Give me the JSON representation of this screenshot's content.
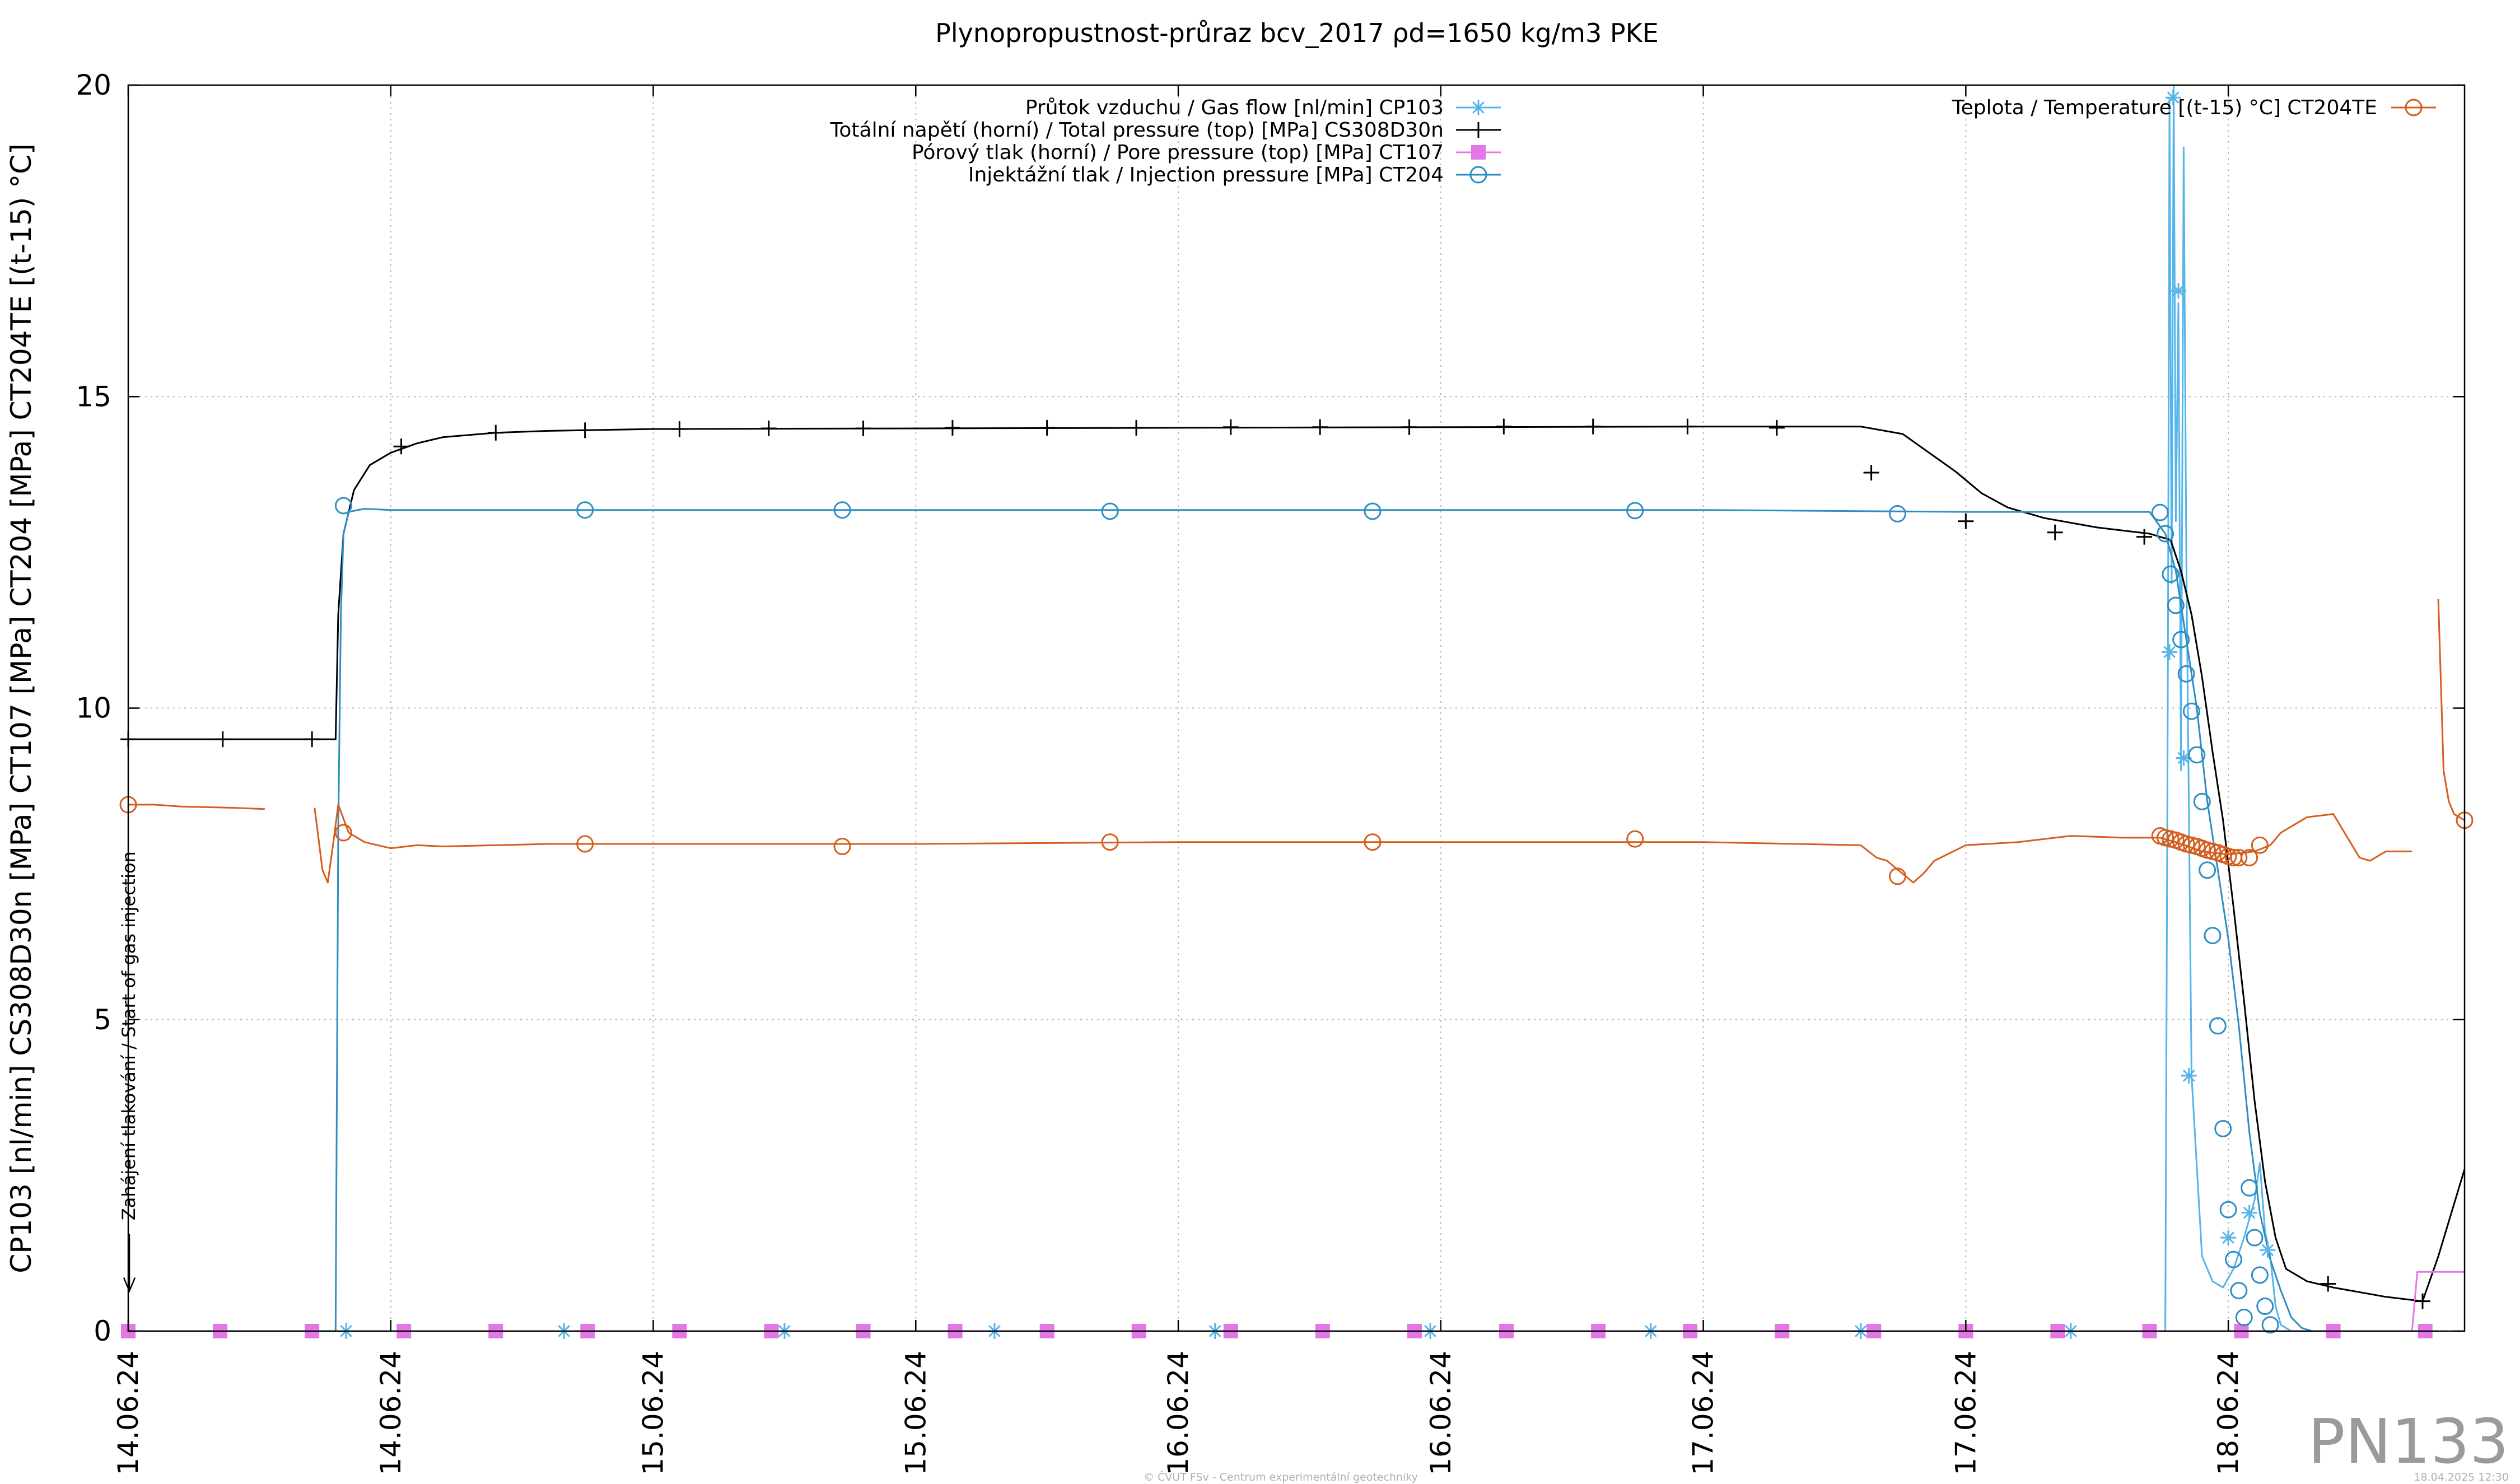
{
  "chart_data": {
    "type": "line",
    "title": "Plynopropustnost-průraz bcv_2017 ρd=1650 kg/m3 PKE",
    "ylabel": "CP103 [nl/min] CS308D30n [MPa] CT107 [MPa] CT204 [MPa] CT204TE [(t-15) °C]",
    "xlabel": "",
    "ylim": [
      0,
      20
    ],
    "xlim": [
      0,
      4.45
    ],
    "yticks": [
      "0",
      "5",
      "10",
      "15",
      "20"
    ],
    "xticks": [
      {
        "x": 0,
        "label": "14.06.24"
      },
      {
        "x": 0.5,
        "label": "14.06.24"
      },
      {
        "x": 1.0,
        "label": "15.06.24"
      },
      {
        "x": 1.5,
        "label": "15.06.24"
      },
      {
        "x": 2.0,
        "label": "16.06.24"
      },
      {
        "x": 2.5,
        "label": "16.06.24"
      },
      {
        "x": 3.0,
        "label": "17.06.24"
      },
      {
        "x": 3.5,
        "label": "17.06.24"
      },
      {
        "x": 4.0,
        "label": "18.06.24"
      }
    ],
    "grid": true,
    "grid_style": "dotted",
    "series": [
      {
        "name": "Průtok vzduchu / Gas flow [nl/min] CP103",
        "color": "#56b4e9",
        "marker": "asterisk",
        "x": [
          0,
          0.39,
          0.398,
          0.4,
          0.42,
          0.6,
          1.0,
          2.0,
          2.8,
          3.5,
          3.75,
          3.88,
          3.885,
          3.888,
          3.892,
          3.896,
          3.9,
          3.905,
          3.91,
          3.915,
          3.92,
          3.93,
          3.95,
          3.97,
          3.99,
          4.01,
          4.03,
          4.05,
          4.06,
          4.07,
          4.08,
          4.09,
          4.1,
          4.12,
          4.15,
          4.2,
          4.3,
          4.4
        ],
        "y": [
          0,
          0,
          0,
          0,
          0,
          0,
          0,
          0,
          0,
          0,
          0,
          0,
          10.8,
          19.8,
          12.0,
          20.0,
          13.0,
          16.5,
          9.0,
          19.0,
          12.5,
          4.1,
          1.2,
          0.8,
          0.7,
          1.0,
          1.5,
          2.1,
          2.7,
          1.6,
          1.2,
          0.4,
          0.1,
          0,
          0,
          0,
          0,
          0
        ],
        "marker_x": [
          0.415,
          0.83,
          1.25,
          1.65,
          2.07,
          2.48,
          2.9,
          3.3,
          3.7,
          3.888,
          3.895,
          3.905,
          3.915,
          3.925,
          4.0,
          4.04,
          4.075
        ],
        "marker_y": [
          0,
          0,
          0,
          0,
          0,
          0,
          0,
          0,
          0,
          10.9,
          19.8,
          16.7,
          9.2,
          4.1,
          1.5,
          1.9,
          1.3
        ]
      },
      {
        "name": "Totální napětí (horní) / Total pressure (top) [MPa] CS308D30n",
        "color": "#000000",
        "marker": "plus",
        "x": [
          0,
          0.39,
          0.395,
          0.4,
          0.41,
          0.43,
          0.46,
          0.5,
          0.55,
          0.6,
          0.7,
          0.8,
          1.0,
          2.0,
          3.0,
          3.3,
          3.38,
          3.43,
          3.48,
          3.53,
          3.58,
          3.65,
          3.75,
          3.85,
          3.87,
          3.89,
          3.91,
          3.93,
          3.95,
          3.97,
          3.99,
          4.01,
          4.03,
          4.05,
          4.07,
          4.09,
          4.11,
          4.15,
          4.2,
          4.3,
          4.35,
          4.37,
          4.4,
          4.45
        ],
        "y": [
          9.5,
          9.5,
          9.5,
          11.5,
          12.8,
          13.5,
          13.9,
          14.1,
          14.25,
          14.35,
          14.42,
          14.45,
          14.48,
          14.5,
          14.52,
          14.52,
          14.4,
          14.1,
          13.8,
          13.45,
          13.22,
          13.05,
          12.9,
          12.8,
          12.75,
          12.7,
          12.2,
          11.5,
          10.5,
          9.3,
          8.2,
          6.8,
          5.3,
          3.7,
          2.4,
          1.5,
          1.0,
          0.8,
          0.7,
          0.55,
          0.5,
          0.48,
          1.2,
          2.6
        ],
        "marker_x": [
          0,
          0.18,
          0.35,
          0.52,
          0.7,
          0.87,
          1.05,
          1.22,
          1.4,
          1.57,
          1.75,
          1.92,
          2.1,
          2.27,
          2.44,
          2.62,
          2.79,
          2.97,
          3.14,
          3.32,
          3.5,
          3.67,
          3.84,
          4.19,
          4.37
        ],
        "marker_y": [
          9.5,
          9.5,
          9.5,
          14.2,
          14.42,
          14.46,
          14.48,
          14.49,
          14.49,
          14.5,
          14.5,
          14.5,
          14.51,
          14.51,
          14.51,
          14.52,
          14.52,
          14.52,
          14.5,
          13.78,
          13.0,
          12.82,
          12.75,
          0.76,
          0.48
        ]
      },
      {
        "name": "Pórový tlak (horní) / Pore pressure (top) [MPa] CT107",
        "color": "#e377e6",
        "marker": "square",
        "x": [
          0,
          4.35,
          4.36,
          4.45
        ],
        "y": [
          0,
          0,
          0.95,
          0.95
        ],
        "marker_x": [
          0,
          0.175,
          0.35,
          0.525,
          0.7,
          0.875,
          1.05,
          1.225,
          1.4,
          1.575,
          1.75,
          1.925,
          2.1,
          2.275,
          2.45,
          2.625,
          2.8,
          2.975,
          3.15,
          3.325,
          3.5,
          3.675,
          3.85,
          4.025,
          4.2,
          4.375
        ],
        "marker_y": [
          0,
          0,
          0,
          0,
          0,
          0,
          0,
          0,
          0,
          0,
          0,
          0,
          0,
          0,
          0,
          0,
          0,
          0,
          0,
          0,
          0,
          0,
          0,
          0,
          0,
          0
        ]
      },
      {
        "name": "Injektážní tlak / Injection pressure [MPa] CT204",
        "color": "#2e8ec2",
        "marker": "circle",
        "x": [
          0,
          0.39,
          0.395,
          0.4,
          0.405,
          0.41,
          0.42,
          0.45,
          0.5,
          1.0,
          2.0,
          3.0,
          3.5,
          3.85,
          3.88,
          3.9,
          3.92,
          3.94,
          3.96,
          3.98,
          4.0,
          4.02,
          4.04,
          4.06,
          4.08,
          4.1,
          4.12,
          4.14,
          4.16,
          4.18,
          4.2
        ],
        "y": [
          0,
          0,
          0,
          8.0,
          11.5,
          12.8,
          13.15,
          13.2,
          13.18,
          13.18,
          13.18,
          13.18,
          13.15,
          13.15,
          12.8,
          12.2,
          11.1,
          10.0,
          8.5,
          7.4,
          6.3,
          4.9,
          3.2,
          1.9,
          1.15,
          0.65,
          0.22,
          0.05,
          0,
          0,
          0
        ],
        "marker_x": [
          0.41,
          0.87,
          1.36,
          1.87,
          2.37,
          2.87,
          3.37,
          3.87,
          3.88,
          3.89,
          3.9,
          3.91,
          3.92,
          3.93,
          3.94,
          3.95,
          3.96,
          3.97,
          3.98,
          3.99,
          4.0,
          4.01,
          4.02,
          4.03,
          4.04,
          4.05,
          4.06,
          4.07,
          4.08
        ],
        "marker_y": [
          13.25,
          13.18,
          13.18,
          13.16,
          13.16,
          13.17,
          13.12,
          13.14,
          12.8,
          12.15,
          11.65,
          11.1,
          10.55,
          9.95,
          9.25,
          8.5,
          7.4,
          6.35,
          4.9,
          3.25,
          1.95,
          1.15,
          0.65,
          0.22,
          2.3,
          1.5,
          0.9,
          0.4,
          0.1
        ]
      },
      {
        "name": "Teplota / Temperature [(t-15) °C] CT204TE",
        "color": "#d45e1e",
        "marker": "circle",
        "x": [
          0,
          0.05,
          0.1,
          0.2,
          0.26,
          null,
          0.355,
          0.37,
          0.38,
          0.39,
          0.4,
          0.42,
          0.45,
          0.5,
          0.55,
          0.6,
          0.7,
          0.8,
          1.0,
          1.5,
          2.0,
          2.5,
          3.0,
          3.3,
          3.33,
          3.35,
          3.4,
          3.42,
          3.44,
          3.5,
          3.6,
          3.65,
          3.7,
          3.8,
          3.87,
          3.9,
          3.95,
          4.0,
          4.05,
          4.08,
          4.1,
          4.15,
          4.2,
          4.25,
          4.27,
          4.3,
          4.35,
          null,
          4.4,
          4.41,
          4.42,
          4.43,
          4.45
        ],
        "y": [
          8.45,
          8.45,
          8.42,
          8.4,
          8.38,
          null,
          8.4,
          7.4,
          7.2,
          7.8,
          8.45,
          8.0,
          7.85,
          7.75,
          7.8,
          7.78,
          7.8,
          7.82,
          7.82,
          7.82,
          7.85,
          7.85,
          7.85,
          7.8,
          7.6,
          7.55,
          7.2,
          7.35,
          7.55,
          7.8,
          7.85,
          7.9,
          7.95,
          7.92,
          7.92,
          7.85,
          7.7,
          7.65,
          7.7,
          7.8,
          8.0,
          8.25,
          8.3,
          7.6,
          7.55,
          7.7,
          7.7,
          null,
          11.75,
          9.0,
          8.5,
          8.3,
          8.2
        ],
        "marker_x": [
          0,
          0.41,
          0.87,
          1.36,
          1.87,
          2.37,
          2.87,
          3.37,
          3.87,
          3.88,
          3.89,
          3.9,
          3.91,
          3.92,
          3.93,
          3.94,
          3.95,
          3.96,
          3.97,
          3.98,
          3.99,
          4.0,
          4.01,
          4.02,
          4.04,
          4.06,
          4.45
        ],
        "marker_y": [
          8.45,
          8.0,
          7.82,
          7.78,
          7.85,
          7.85,
          7.9,
          7.3,
          7.95,
          7.92,
          7.9,
          7.88,
          7.85,
          7.82,
          7.8,
          7.78,
          7.75,
          7.72,
          7.7,
          7.68,
          7.65,
          7.62,
          7.6,
          7.6,
          7.6,
          7.8,
          8.2
        ]
      }
    ],
    "legend": {
      "left_group_placement": "top-center",
      "right_group_placement": "top-right",
      "left_group": [
        0,
        1,
        2,
        3
      ],
      "right_group": [
        4
      ]
    },
    "annotations": [
      {
        "text": "Zahájení tlakování / Start of gas injection",
        "x": 0,
        "y_from": 1.2,
        "y_to": 9.0,
        "orientation": "vertical",
        "arrow": "down"
      }
    ]
  },
  "watermark": "PN133",
  "footer_left": "© ČVUT FSv - Centrum experimentální geotechniky",
  "footer_right": "18.04.2025 12:30"
}
